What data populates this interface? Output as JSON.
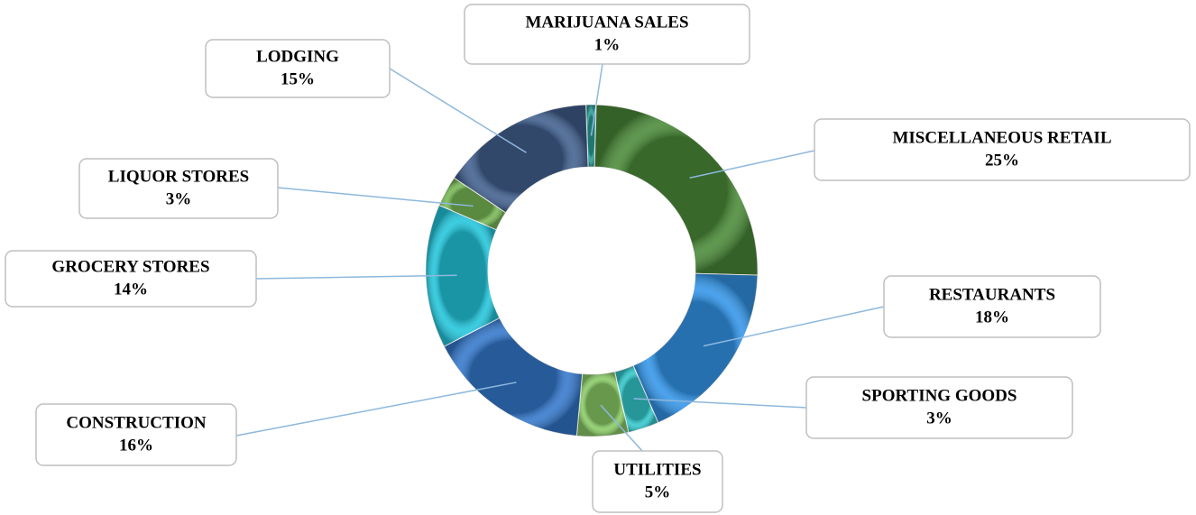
{
  "chart_data": {
    "type": "pie",
    "donut": true,
    "categories": [
      "MARIJUANA SALES",
      "MISCELLANEOUS RETAIL",
      "RESTAURANTS",
      "SPORTING GOODS",
      "UTILITIES",
      "CONSTRUCTION",
      "GROCERY STORES",
      "LIQUOR STORES",
      "LODGING"
    ],
    "values": [
      1,
      25,
      18,
      3,
      5,
      16,
      14,
      3,
      15
    ],
    "value_labels": [
      "1%",
      "25%",
      "18%",
      "3%",
      "5%",
      "16%",
      "14%",
      "3%",
      "15%"
    ],
    "colors": [
      "#2a9f98",
      "#4a8a38",
      "#3396ea",
      "#33c8cc",
      "#8acb66",
      "#3478cc",
      "#22c6dc",
      "#78b855",
      "#41608f"
    ]
  }
}
